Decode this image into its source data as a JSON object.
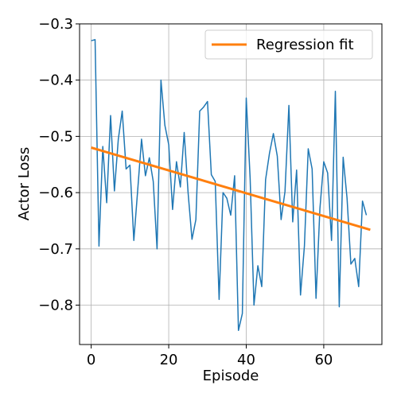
{
  "chart_data": {
    "type": "line",
    "xlabel": "Episode",
    "ylabel": "Actor Loss",
    "xlim": [
      -3,
      75
    ],
    "ylim": [
      -0.87,
      -0.3
    ],
    "xticks": [
      0,
      20,
      40,
      60
    ],
    "xtick_labels": [
      "0",
      "20",
      "40",
      "60"
    ],
    "yticks": [
      -0.3,
      -0.4,
      -0.5,
      -0.6,
      -0.7,
      -0.8
    ],
    "ytick_labels": [
      "−0.3",
      "−0.4",
      "−0.5",
      "−0.6",
      "−0.7",
      "−0.8"
    ],
    "grid": true,
    "legend_position": "top-right",
    "series": [
      {
        "color": "#1f77b4",
        "x": [
          0,
          1,
          2,
          3,
          4,
          5,
          6,
          7,
          8,
          9,
          10,
          11,
          12,
          13,
          14,
          15,
          16,
          17,
          18,
          19,
          20,
          21,
          22,
          23,
          24,
          25,
          26,
          27,
          28,
          29,
          30,
          31,
          32,
          33,
          34,
          35,
          36,
          37,
          38,
          39,
          40,
          41,
          42,
          43,
          44,
          45,
          46,
          47,
          48,
          49,
          50,
          51,
          52,
          53,
          54,
          55,
          56,
          57,
          58,
          59,
          60,
          61,
          62,
          63,
          64,
          65,
          66,
          67,
          68,
          69,
          70,
          71
        ],
        "y": [
          -0.33,
          -0.328,
          -0.695,
          -0.518,
          -0.618,
          -0.463,
          -0.597,
          -0.505,
          -0.455,
          -0.558,
          -0.551,
          -0.685,
          -0.595,
          -0.505,
          -0.57,
          -0.538,
          -0.58,
          -0.7,
          -0.4,
          -0.48,
          -0.515,
          -0.63,
          -0.545,
          -0.59,
          -0.493,
          -0.6,
          -0.683,
          -0.648,
          -0.455,
          -0.448,
          -0.438,
          -0.568,
          -0.58,
          -0.79,
          -0.6,
          -0.61,
          -0.64,
          -0.57,
          -0.845,
          -0.815,
          -0.432,
          -0.575,
          -0.8,
          -0.73,
          -0.767,
          -0.577,
          -0.53,
          -0.495,
          -0.535,
          -0.648,
          -0.598,
          -0.445,
          -0.652,
          -0.56,
          -0.782,
          -0.695,
          -0.522,
          -0.558,
          -0.788,
          -0.628,
          -0.545,
          -0.565,
          -0.685,
          -0.42,
          -0.803,
          -0.537,
          -0.61,
          -0.727,
          -0.717,
          -0.767,
          -0.615,
          -0.64
        ]
      },
      {
        "name": "Regression fit",
        "color": "#ff7f0e",
        "x": [
          0,
          72
        ],
        "y": [
          -0.52,
          -0.666
        ]
      }
    ]
  }
}
